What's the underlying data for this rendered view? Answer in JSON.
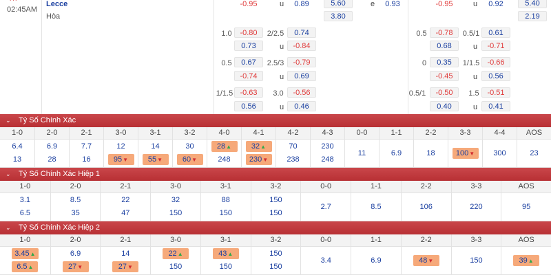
{
  "match": {
    "status": "HT",
    "time": "02:45AM",
    "team": "Lecce",
    "draw_label": "Hòa"
  },
  "top": {
    "row0": {
      "h1": "-0.95",
      "u1": "u",
      "o1": "0.89",
      "x1a": "5.60",
      "x1b": "3.80",
      "e": "e",
      "e_val": "0.93",
      "h2": "-0.95",
      "u2": "u",
      "o2": "0.92",
      "x2a": "5.40",
      "x2b": "2.19"
    },
    "rows": [
      {
        "hcap": "1.0",
        "a": "-0.80",
        "b": "0.73",
        "line": "2/2.5",
        "c": "0.74",
        "u": "u",
        "d": "-0.84",
        "hcap2": "0.5",
        "a2": "-0.78",
        "b2": "0.68",
        "line2": "0.5/1",
        "c2": "0.61",
        "u2": "u",
        "d2": "-0.71"
      },
      {
        "hcap": "0.5",
        "a": "0.67",
        "b": "-0.74",
        "line": "2.5/3",
        "c": "-0.79",
        "u": "u",
        "d": "0.69",
        "hcap2": "0",
        "a2": "0.35",
        "b2": "-0.45",
        "line2": "1/1.5",
        "c2": "-0.66",
        "u2": "u",
        "d2": "0.56"
      },
      {
        "hcap": "1/1.5",
        "a": "-0.63",
        "b": "0.56",
        "line": "3.0",
        "c": "-0.56",
        "u": "u",
        "d": "0.46",
        "hcap2": "0.5/1",
        "a2": "-0.50",
        "b2": "0.40",
        "line2": "1.5",
        "c2": "-0.51",
        "u2": "u",
        "d2": "0.41"
      }
    ]
  },
  "sections": [
    {
      "title": "Tỷ Số Chính Xác",
      "columns": [
        {
          "label": "1-0",
          "v1": "6.4",
          "v2": "13"
        },
        {
          "label": "2-0",
          "v1": "6.9",
          "v2": "28"
        },
        {
          "label": "2-1",
          "v1": "7.7",
          "v2": "16"
        },
        {
          "label": "3-0",
          "v1": "12",
          "v2": "95",
          "v2_hot": true,
          "v2_arrow": "down"
        },
        {
          "label": "3-1",
          "v1": "14",
          "v2": "55",
          "v2_hot": true,
          "v2_arrow": "down"
        },
        {
          "label": "3-2",
          "v1": "30",
          "v2": "60",
          "v2_hot": true,
          "v2_arrow": "down"
        },
        {
          "label": "4-0",
          "v1": "28",
          "v1_hot": true,
          "v1_arrow": "up",
          "v2": "248"
        },
        {
          "label": "4-1",
          "v1": "32",
          "v1_hot": true,
          "v1_arrow": "up",
          "v2": "230",
          "v2_hot": true,
          "v2_arrow": "down"
        },
        {
          "label": "4-2",
          "v1": "70",
          "v2": "238"
        },
        {
          "label": "4-3",
          "v1": "230",
          "v2": "248"
        },
        {
          "label": "0-0",
          "single": "11"
        },
        {
          "label": "1-1",
          "single": "6.9"
        },
        {
          "label": "2-2",
          "single": "18"
        },
        {
          "label": "3-3",
          "single": "100",
          "single_hot": true,
          "single_arrow": "down"
        },
        {
          "label": "4-4",
          "single": "300"
        },
        {
          "label": "AOS",
          "single": "23"
        }
      ]
    },
    {
      "title": "Tỷ Số Chính Xác Hiệp 1",
      "columns": [
        {
          "label": "1-0",
          "v1": "3.1",
          "v2": "6.5"
        },
        {
          "label": "2-0",
          "v1": "8.5",
          "v2": "35"
        },
        {
          "label": "2-1",
          "v1": "22",
          "v2": "47"
        },
        {
          "label": "3-0",
          "v1": "32",
          "v2": "150"
        },
        {
          "label": "3-1",
          "v1": "88",
          "v2": "150"
        },
        {
          "label": "3-2",
          "v1": "150",
          "v2": "150"
        },
        {
          "label": "0-0",
          "single": "2.7"
        },
        {
          "label": "1-1",
          "single": "8.5"
        },
        {
          "label": "2-2",
          "single": "106"
        },
        {
          "label": "3-3",
          "single": "220"
        },
        {
          "label": "AOS",
          "single": "95"
        }
      ]
    },
    {
      "title": "Tỷ Số Chính Xác Hiệp 2",
      "columns": [
        {
          "label": "1-0",
          "v1": "3.45",
          "v1_hot": true,
          "v1_arrow": "up",
          "v2": "6.5",
          "v2_hot": true,
          "v2_arrow": "up"
        },
        {
          "label": "2-0",
          "v1": "6.9",
          "v2": "27",
          "v2_hot": true,
          "v2_arrow": "down"
        },
        {
          "label": "2-1",
          "v1": "14",
          "v2": "27",
          "v2_hot": true,
          "v2_arrow": "down"
        },
        {
          "label": "3-0",
          "v1": "22",
          "v1_hot": true,
          "v1_arrow": "up",
          "v2": "150"
        },
        {
          "label": "3-1",
          "v1": "43",
          "v1_hot": true,
          "v1_arrow": "up",
          "v2": "150"
        },
        {
          "label": "3-2",
          "v1": "150",
          "v2": "150"
        },
        {
          "label": "0-0",
          "single": "3.4"
        },
        {
          "label": "1-1",
          "single": "6.9"
        },
        {
          "label": "2-2",
          "single": "48",
          "single_hot": true,
          "single_arrow": "down"
        },
        {
          "label": "3-3",
          "single": "150"
        },
        {
          "label": "AOS",
          "single": "39",
          "single_hot": true,
          "single_arrow": "up"
        }
      ]
    }
  ]
}
